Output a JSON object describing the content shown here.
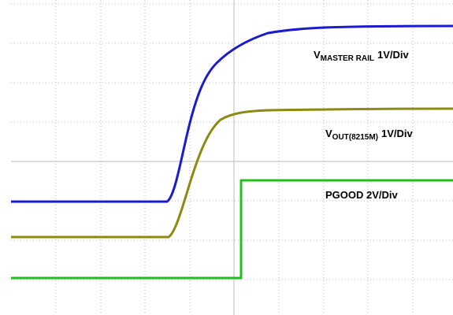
{
  "chart_data": {
    "type": "line",
    "annotations": [
      {
        "main": "V",
        "sub": "MASTER RAIL",
        "scale": "1V/Div"
      },
      {
        "main": "V",
        "sub": "OUT(8215M)",
        "scale": "1V/Div"
      },
      {
        "text": "PGOOD 2V/Div"
      }
    ]
  }
}
